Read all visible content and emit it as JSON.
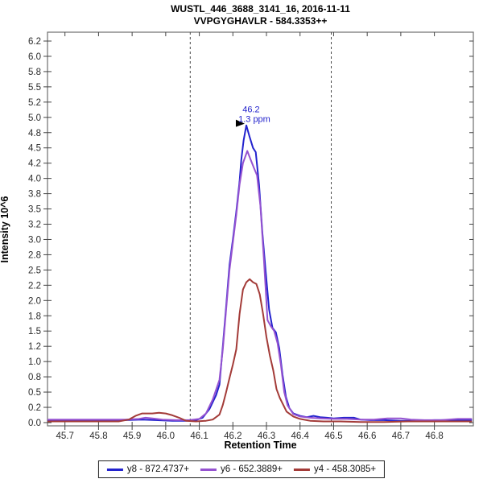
{
  "header": {
    "title": "WUSTL_446_3688_3141_16, 2016-11-11",
    "subtitle": "VVPGYGHAVLR - 584.3353++"
  },
  "chart_data": {
    "type": "line",
    "title": "WUSTL_446_3688_3141_16, 2016-11-11",
    "subtitle": "VVPGYGHAVLR - 584.3353++",
    "xlabel": "Retention Time",
    "ylabel": "Intensity 10^6",
    "xlim": [
      45.648,
      46.916
    ],
    "ylim": [
      -0.053,
      6.395
    ],
    "grid": false,
    "legend_position": "bottom-center",
    "x_ticks": [
      {
        "v": 45.7,
        "label": "45.7"
      },
      {
        "v": 45.8,
        "label": "45.8"
      },
      {
        "v": 45.9,
        "label": "45.9"
      },
      {
        "v": 46.0,
        "label": "46.0"
      },
      {
        "v": 46.1,
        "label": "46.1"
      },
      {
        "v": 46.2,
        "label": "46.2"
      },
      {
        "v": 46.3,
        "label": "46.3"
      },
      {
        "v": 46.4,
        "label": "46.4"
      },
      {
        "v": 46.5,
        "label": "46.5"
      },
      {
        "v": 46.6,
        "label": "46.6"
      },
      {
        "v": 46.7,
        "label": "46.7"
      },
      {
        "v": 46.8,
        "label": "46.8"
      }
    ],
    "y_ticks": [
      {
        "v": 0.0,
        "label": "0.0"
      },
      {
        "v": 0.25,
        "label": "0.2"
      },
      {
        "v": 0.5,
        "label": "0.5"
      },
      {
        "v": 0.75,
        "label": "0.8"
      },
      {
        "v": 1.0,
        "label": "1.0"
      },
      {
        "v": 1.25,
        "label": "1.2"
      },
      {
        "v": 1.5,
        "label": "1.5"
      },
      {
        "v": 1.75,
        "label": "1.8"
      },
      {
        "v": 2.0,
        "label": "2.0"
      },
      {
        "v": 2.25,
        "label": "2.2"
      },
      {
        "v": 2.5,
        "label": "2.5"
      },
      {
        "v": 2.75,
        "label": "2.8"
      },
      {
        "v": 3.0,
        "label": "3.0"
      },
      {
        "v": 3.25,
        "label": "3.2"
      },
      {
        "v": 3.5,
        "label": "3.5"
      },
      {
        "v": 3.75,
        "label": "3.8"
      },
      {
        "v": 4.0,
        "label": "4.0"
      },
      {
        "v": 4.25,
        "label": "4.2"
      },
      {
        "v": 4.5,
        "label": "4.5"
      },
      {
        "v": 4.75,
        "label": "4.8"
      },
      {
        "v": 5.0,
        "label": "5.0"
      },
      {
        "v": 5.25,
        "label": "5.2"
      },
      {
        "v": 5.5,
        "label": "5.5"
      },
      {
        "v": 5.75,
        "label": "5.8"
      },
      {
        "v": 6.0,
        "label": "6.0"
      },
      {
        "v": 6.25,
        "label": "6.2"
      }
    ],
    "peak_boundaries": [
      46.073,
      46.493
    ],
    "annotation": {
      "x": 46.24,
      "y": 4.87,
      "lines": [
        "46.2",
        "1.3 ppm"
      ],
      "color": "#2222CC"
    },
    "series": [
      {
        "name": "y8 - 872.4737+",
        "id": "y8",
        "color": "#2323CE",
        "points": [
          [
            45.65,
            0.03
          ],
          [
            45.7,
            0.03
          ],
          [
            45.76,
            0.04
          ],
          [
            45.82,
            0.03
          ],
          [
            45.88,
            0.04
          ],
          [
            45.93,
            0.05
          ],
          [
            45.97,
            0.04
          ],
          [
            46.02,
            0.03
          ],
          [
            46.06,
            0.03
          ],
          [
            46.09,
            0.04
          ],
          [
            46.11,
            0.08
          ],
          [
            46.13,
            0.22
          ],
          [
            46.15,
            0.45
          ],
          [
            46.16,
            0.62
          ],
          [
            46.17,
            1.25
          ],
          [
            46.18,
            1.9
          ],
          [
            46.19,
            2.58
          ],
          [
            46.2,
            3.0
          ],
          [
            46.21,
            3.45
          ],
          [
            46.22,
            3.95
          ],
          [
            46.225,
            4.3
          ],
          [
            46.232,
            4.62
          ],
          [
            46.24,
            4.87
          ],
          [
            46.25,
            4.68
          ],
          [
            46.26,
            4.5
          ],
          [
            46.268,
            4.43
          ],
          [
            46.278,
            3.9
          ],
          [
            46.288,
            3.1
          ],
          [
            46.298,
            2.45
          ],
          [
            46.308,
            1.85
          ],
          [
            46.318,
            1.55
          ],
          [
            46.328,
            1.48
          ],
          [
            46.338,
            1.22
          ],
          [
            46.348,
            0.78
          ],
          [
            46.358,
            0.42
          ],
          [
            46.368,
            0.24
          ],
          [
            46.38,
            0.15
          ],
          [
            46.4,
            0.11
          ],
          [
            46.42,
            0.09
          ],
          [
            46.44,
            0.11
          ],
          [
            46.46,
            0.09
          ],
          [
            46.48,
            0.08
          ],
          [
            46.5,
            0.07
          ],
          [
            46.53,
            0.08
          ],
          [
            46.56,
            0.08
          ],
          [
            46.58,
            0.05
          ],
          [
            46.61,
            0.04
          ],
          [
            46.65,
            0.04
          ],
          [
            46.7,
            0.03
          ],
          [
            46.75,
            0.03
          ],
          [
            46.8,
            0.04
          ],
          [
            46.85,
            0.04
          ],
          [
            46.9,
            0.04
          ],
          [
            46.91,
            0.04
          ]
        ]
      },
      {
        "name": "y6 - 652.3889+",
        "id": "y6",
        "color": "#9552D0",
        "points": [
          [
            45.65,
            0.05
          ],
          [
            45.72,
            0.05
          ],
          [
            45.8,
            0.05
          ],
          [
            45.88,
            0.05
          ],
          [
            45.92,
            0.06
          ],
          [
            45.94,
            0.08
          ],
          [
            45.96,
            0.07
          ],
          [
            45.99,
            0.05
          ],
          [
            46.03,
            0.04
          ],
          [
            46.07,
            0.04
          ],
          [
            46.1,
            0.06
          ],
          [
            46.12,
            0.15
          ],
          [
            46.14,
            0.38
          ],
          [
            46.16,
            0.7
          ],
          [
            46.17,
            1.2
          ],
          [
            46.18,
            1.85
          ],
          [
            46.19,
            2.5
          ],
          [
            46.2,
            2.95
          ],
          [
            46.21,
            3.4
          ],
          [
            46.22,
            3.9
          ],
          [
            46.23,
            4.25
          ],
          [
            46.243,
            4.45
          ],
          [
            46.252,
            4.32
          ],
          [
            46.262,
            4.18
          ],
          [
            46.272,
            4.05
          ],
          [
            46.282,
            3.55
          ],
          [
            46.292,
            2.7
          ],
          [
            46.298,
            2.15
          ],
          [
            46.303,
            1.68
          ],
          [
            46.313,
            1.58
          ],
          [
            46.323,
            1.5
          ],
          [
            46.333,
            1.3
          ],
          [
            46.343,
            0.95
          ],
          [
            46.353,
            0.5
          ],
          [
            46.363,
            0.28
          ],
          [
            46.38,
            0.14
          ],
          [
            46.4,
            0.1
          ],
          [
            46.43,
            0.08
          ],
          [
            46.46,
            0.07
          ],
          [
            46.5,
            0.06
          ],
          [
            46.54,
            0.06
          ],
          [
            46.58,
            0.05
          ],
          [
            46.62,
            0.05
          ],
          [
            46.66,
            0.07
          ],
          [
            46.7,
            0.07
          ],
          [
            46.73,
            0.05
          ],
          [
            46.77,
            0.04
          ],
          [
            46.82,
            0.04
          ],
          [
            46.87,
            0.06
          ],
          [
            46.91,
            0.06
          ]
        ]
      },
      {
        "name": "y4 - 458.3085+",
        "id": "y4",
        "color": "#A33B38",
        "points": [
          [
            45.65,
            0.02
          ],
          [
            45.72,
            0.02
          ],
          [
            45.8,
            0.02
          ],
          [
            45.86,
            0.02
          ],
          [
            45.89,
            0.05
          ],
          [
            45.91,
            0.11
          ],
          [
            45.93,
            0.15
          ],
          [
            45.96,
            0.15
          ],
          [
            45.98,
            0.16
          ],
          [
            46.0,
            0.15
          ],
          [
            46.02,
            0.12
          ],
          [
            46.04,
            0.08
          ],
          [
            46.06,
            0.03
          ],
          [
            46.09,
            0.02
          ],
          [
            46.12,
            0.03
          ],
          [
            46.14,
            0.05
          ],
          [
            46.16,
            0.13
          ],
          [
            46.17,
            0.29
          ],
          [
            46.18,
            0.5
          ],
          [
            46.19,
            0.73
          ],
          [
            46.2,
            0.95
          ],
          [
            46.21,
            1.2
          ],
          [
            46.22,
            1.78
          ],
          [
            46.23,
            2.18
          ],
          [
            46.24,
            2.3
          ],
          [
            46.25,
            2.35
          ],
          [
            46.26,
            2.3
          ],
          [
            46.27,
            2.27
          ],
          [
            46.28,
            2.1
          ],
          [
            46.29,
            1.78
          ],
          [
            46.3,
            1.4
          ],
          [
            46.31,
            1.1
          ],
          [
            46.32,
            0.86
          ],
          [
            46.33,
            0.55
          ],
          [
            46.34,
            0.4
          ],
          [
            46.35,
            0.29
          ],
          [
            46.36,
            0.18
          ],
          [
            46.38,
            0.1
          ],
          [
            46.4,
            0.06
          ],
          [
            46.43,
            0.03
          ],
          [
            46.47,
            0.02
          ],
          [
            46.52,
            0.02
          ],
          [
            46.58,
            0.01
          ],
          [
            46.65,
            0.01
          ],
          [
            46.72,
            0.02
          ],
          [
            46.8,
            0.02
          ],
          [
            46.87,
            0.02
          ],
          [
            46.91,
            0.02
          ]
        ]
      }
    ]
  },
  "style": {
    "plot_border": "#6e6e6e",
    "tick_color": "#444444",
    "tick_text": "#2b2b2b",
    "boundary_line": "#4a4a4a",
    "annotation_arrow": "#000000"
  }
}
